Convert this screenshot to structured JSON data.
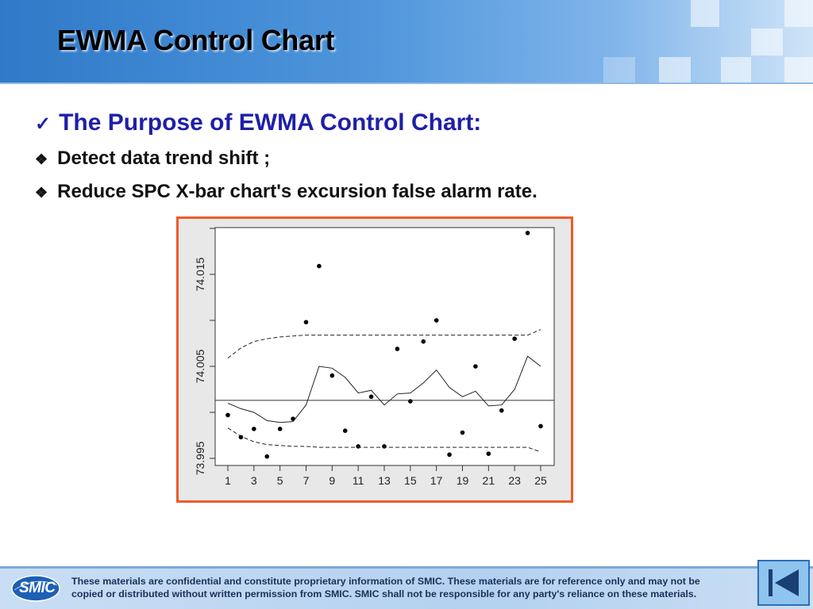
{
  "slide": {
    "title": "EWMA Control Chart"
  },
  "bullets": {
    "heading_mark": "✓",
    "heading": "The Purpose of EWMA Control Chart:",
    "items": [
      {
        "mark": "❖",
        "text": "Detect data trend shift ;"
      },
      {
        "mark": "❖",
        "text": "Reduce SPC X-bar chart's excursion false alarm rate."
      }
    ]
  },
  "chart_data": {
    "type": "line",
    "title": "",
    "xlabel": "",
    "ylabel": "",
    "xlim": [
      1,
      25
    ],
    "ylim": [
      73.995,
      74.0195
    ],
    "x_ticks": [
      1,
      3,
      5,
      7,
      9,
      11,
      13,
      15,
      17,
      19,
      21,
      23,
      25
    ],
    "y_ticks": [
      73.995,
      74.005,
      74.015
    ],
    "grid": false,
    "center_line": 74.0013,
    "series": [
      {
        "type": "scatter",
        "x": [
          1,
          2,
          3,
          4,
          5,
          6,
          7,
          8,
          9,
          10,
          11,
          12,
          13,
          14,
          15,
          16,
          17,
          18,
          19,
          20,
          21,
          22,
          23,
          24,
          25
        ],
        "y": [
          73.9997,
          73.9973,
          73.9982,
          73.9952,
          73.9982,
          73.9993,
          74.0098,
          74.0159,
          74.004,
          73.998,
          73.9963,
          74.0017,
          73.9963,
          74.0069,
          74.0012,
          74.0077,
          74.01,
          73.9954,
          73.9978,
          74.005,
          73.9955,
          74.0002,
          74.008,
          74.0195,
          73.9985
        ]
      },
      {
        "type": "line",
        "x": [
          1,
          2,
          3,
          4,
          5,
          6,
          7,
          8,
          9,
          10,
          11,
          12,
          13,
          14,
          15,
          16,
          17,
          18,
          19,
          20,
          21,
          22,
          23,
          24,
          25
        ],
        "y": [
          74.001,
          74.0004,
          74.0,
          73.9991,
          73.9989,
          73.999,
          74.0008,
          74.005,
          74.0048,
          74.0038,
          74.0021,
          74.0024,
          74.0008,
          74.002,
          74.0021,
          74.0032,
          74.0046,
          74.0027,
          74.0017,
          74.0023,
          74.0007,
          74.0008,
          74.0025,
          74.0061,
          74.005
        ]
      },
      {
        "type": "line",
        "style": "dashed",
        "x": [
          1,
          2,
          3,
          4,
          5,
          6,
          7,
          8,
          9,
          10,
          11,
          12,
          13,
          14,
          15,
          16,
          17,
          18,
          19,
          20,
          21,
          22,
          23,
          24,
          25
        ],
        "y": [
          74.0059,
          74.007,
          74.0077,
          74.008,
          74.0082,
          74.0083,
          74.0084,
          74.0084,
          74.0084,
          74.0084,
          74.0084,
          74.0084,
          74.0084,
          74.0084,
          74.0084,
          74.0084,
          74.0084,
          74.0084,
          74.0084,
          74.0084,
          74.0084,
          74.0084,
          74.0084,
          74.0084,
          74.009
        ]
      },
      {
        "type": "line",
        "style": "dashed",
        "x": [
          1,
          2,
          3,
          4,
          5,
          6,
          7,
          8,
          9,
          10,
          11,
          12,
          13,
          14,
          15,
          16,
          17,
          18,
          19,
          20,
          21,
          22,
          23,
          24,
          25
        ],
        "y": [
          73.9983,
          73.9974,
          73.9968,
          73.9965,
          73.9964,
          73.9963,
          73.9963,
          73.9962,
          73.9962,
          73.9962,
          73.9962,
          73.9962,
          73.9962,
          73.9962,
          73.9962,
          73.9962,
          73.9962,
          73.9962,
          73.9962,
          73.9962,
          73.9962,
          73.9962,
          73.9962,
          73.9962,
          73.9957
        ]
      }
    ]
  },
  "footer": {
    "logo_text": "SMIC",
    "disclaimer_line1": "These materials are confidential and constitute proprietary information of SMIC.  These materials are for reference only and may not be",
    "disclaimer_line2": "copied or distributed without written permission from SMIC.  SMIC shall not be responsible for any party's reliance on these materials."
  },
  "colors": {
    "frame_border": "#f05a28",
    "heading": "#1f1fa8",
    "nav_button": "#8fc4ef"
  },
  "icons": {
    "back_button": "first-slide-icon"
  }
}
